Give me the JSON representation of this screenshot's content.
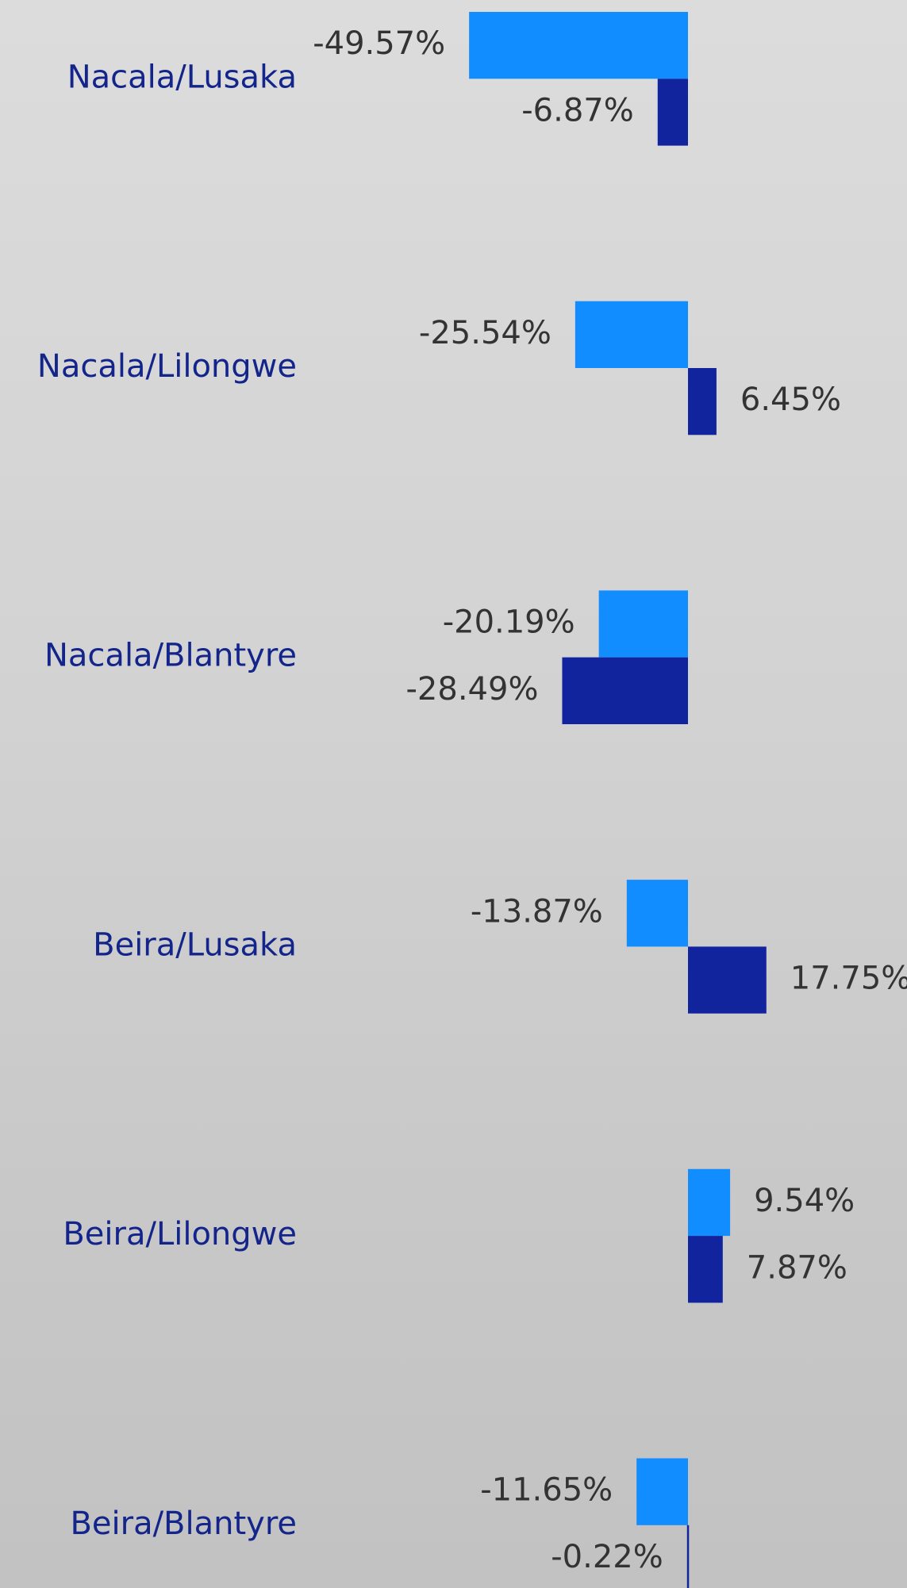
{
  "chart_data": {
    "type": "bar",
    "orientation": "horizontal",
    "categories": [
      "Nacala/Lusaka",
      "Nacala/Lilongwe",
      "Nacala/Blantyre",
      "Beira/Lusaka",
      "Beira/Lilongwe",
      "Beira/Blantyre"
    ],
    "series": [
      {
        "color": "#118dff",
        "values": [
          -49.57,
          -25.54,
          -20.19,
          -13.87,
          9.54,
          -11.65
        ],
        "value_labels": [
          "-49.57%",
          "-25.54%",
          "-20.19%",
          "-13.87%",
          "9.54%",
          "-11.65%"
        ]
      },
      {
        "color": "#12239e",
        "values": [
          -6.87,
          6.45,
          -28.49,
          17.75,
          7.87,
          -0.22
        ],
        "value_labels": [
          "-6.87%",
          "6.45%",
          "-28.49%",
          "17.75%",
          "7.87%",
          "-0.22%"
        ]
      }
    ]
  }
}
